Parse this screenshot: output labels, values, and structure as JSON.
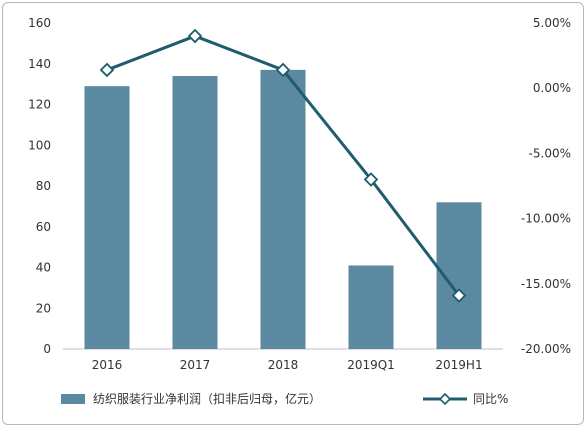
{
  "chart_data": {
    "type": "bar",
    "categories": [
      "2016",
      "2017",
      "2018",
      "2019Q1",
      "2019H1"
    ],
    "series": [
      {
        "name": "纺织服装行业净利润（扣非后归母，亿元）",
        "type": "bar",
        "axis": "left",
        "values": [
          129,
          134,
          137,
          41,
          72
        ],
        "color": "#5b8aa0"
      },
      {
        "name": "同比%",
        "type": "line",
        "axis": "right",
        "values": [
          1.4,
          4.0,
          1.4,
          -7.0,
          -15.9
        ],
        "color": "#1f5c6e",
        "marker": "diamond"
      }
    ],
    "y_left": {
      "lim": [
        0,
        160
      ],
      "ticks": [
        0,
        20,
        40,
        60,
        80,
        100,
        120,
        140,
        160
      ]
    },
    "y_right": {
      "lim": [
        -20,
        5
      ],
      "ticks": [
        -20,
        -15,
        -10,
        -5,
        0,
        5
      ],
      "tick_labels": [
        "-20.00%",
        "-15.00%",
        "-10.00%",
        "-5.00%",
        "0.00%",
        "5.00%"
      ]
    },
    "legend_position": "bottom",
    "grid": false
  }
}
